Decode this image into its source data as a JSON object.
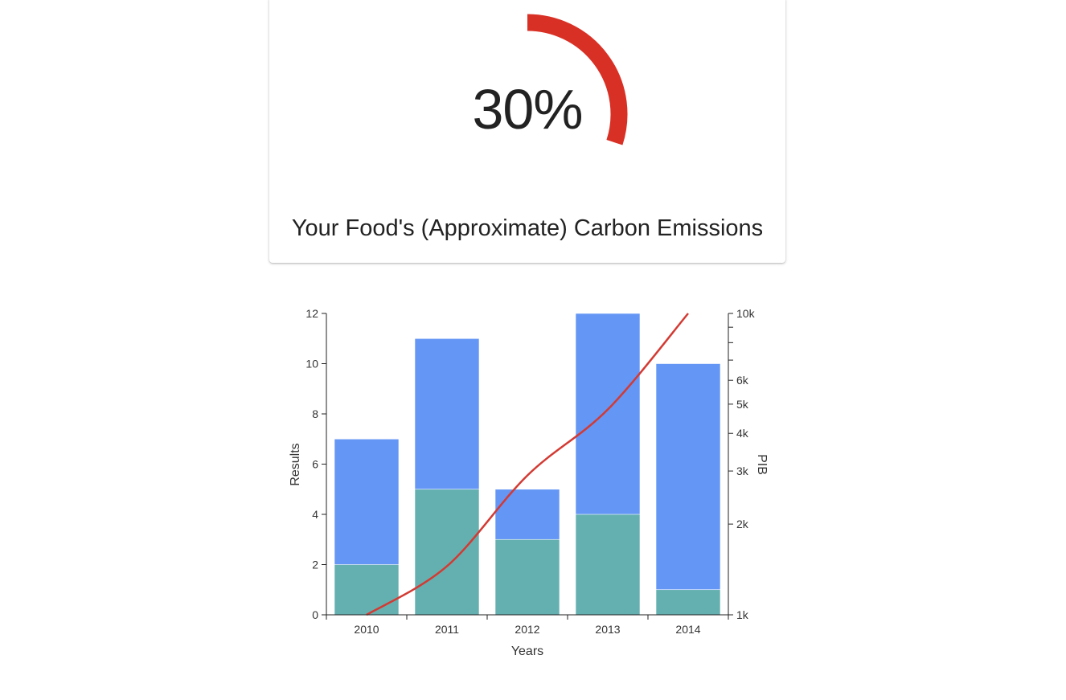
{
  "gauge": {
    "value_label": "30%",
    "percent": 30,
    "title": "Your Food's (Approximate) Carbon Emissions",
    "color": "#d93025"
  },
  "chart_data": {
    "type": "bar",
    "categories": [
      "2010",
      "2011",
      "2012",
      "2013",
      "2014"
    ],
    "series": [
      {
        "values": [
          7,
          11,
          5,
          12,
          10
        ],
        "color": "#6496f5"
      },
      {
        "values": [
          2,
          5,
          3,
          4,
          1
        ],
        "color": "#64b0b0"
      }
    ],
    "line_series": {
      "axis": "right",
      "values": [
        1000,
        1450,
        2900,
        4800,
        10000
      ],
      "color": "#d33a33"
    },
    "xlabel": "Years",
    "ylabel": "Results",
    "y2label": "PIB",
    "ylim": [
      0,
      12
    ],
    "yticks": [
      "0",
      "2",
      "4",
      "6",
      "8",
      "10",
      "12"
    ],
    "y2_scale": "log",
    "y2lim": [
      1000,
      10000
    ],
    "y2ticks": [
      {
        "value": 1000,
        "label": "1k"
      },
      {
        "value": 2000,
        "label": "2k"
      },
      {
        "value": 3000,
        "label": "3k"
      },
      {
        "value": 4000,
        "label": "4k"
      },
      {
        "value": 5000,
        "label": "5k"
      },
      {
        "value": 6000,
        "label": "6k"
      },
      {
        "value": 7000,
        "label": ""
      },
      {
        "value": 8000,
        "label": ""
      },
      {
        "value": 9000,
        "label": ""
      },
      {
        "value": 10000,
        "label": "10k"
      }
    ],
    "grid": false
  }
}
